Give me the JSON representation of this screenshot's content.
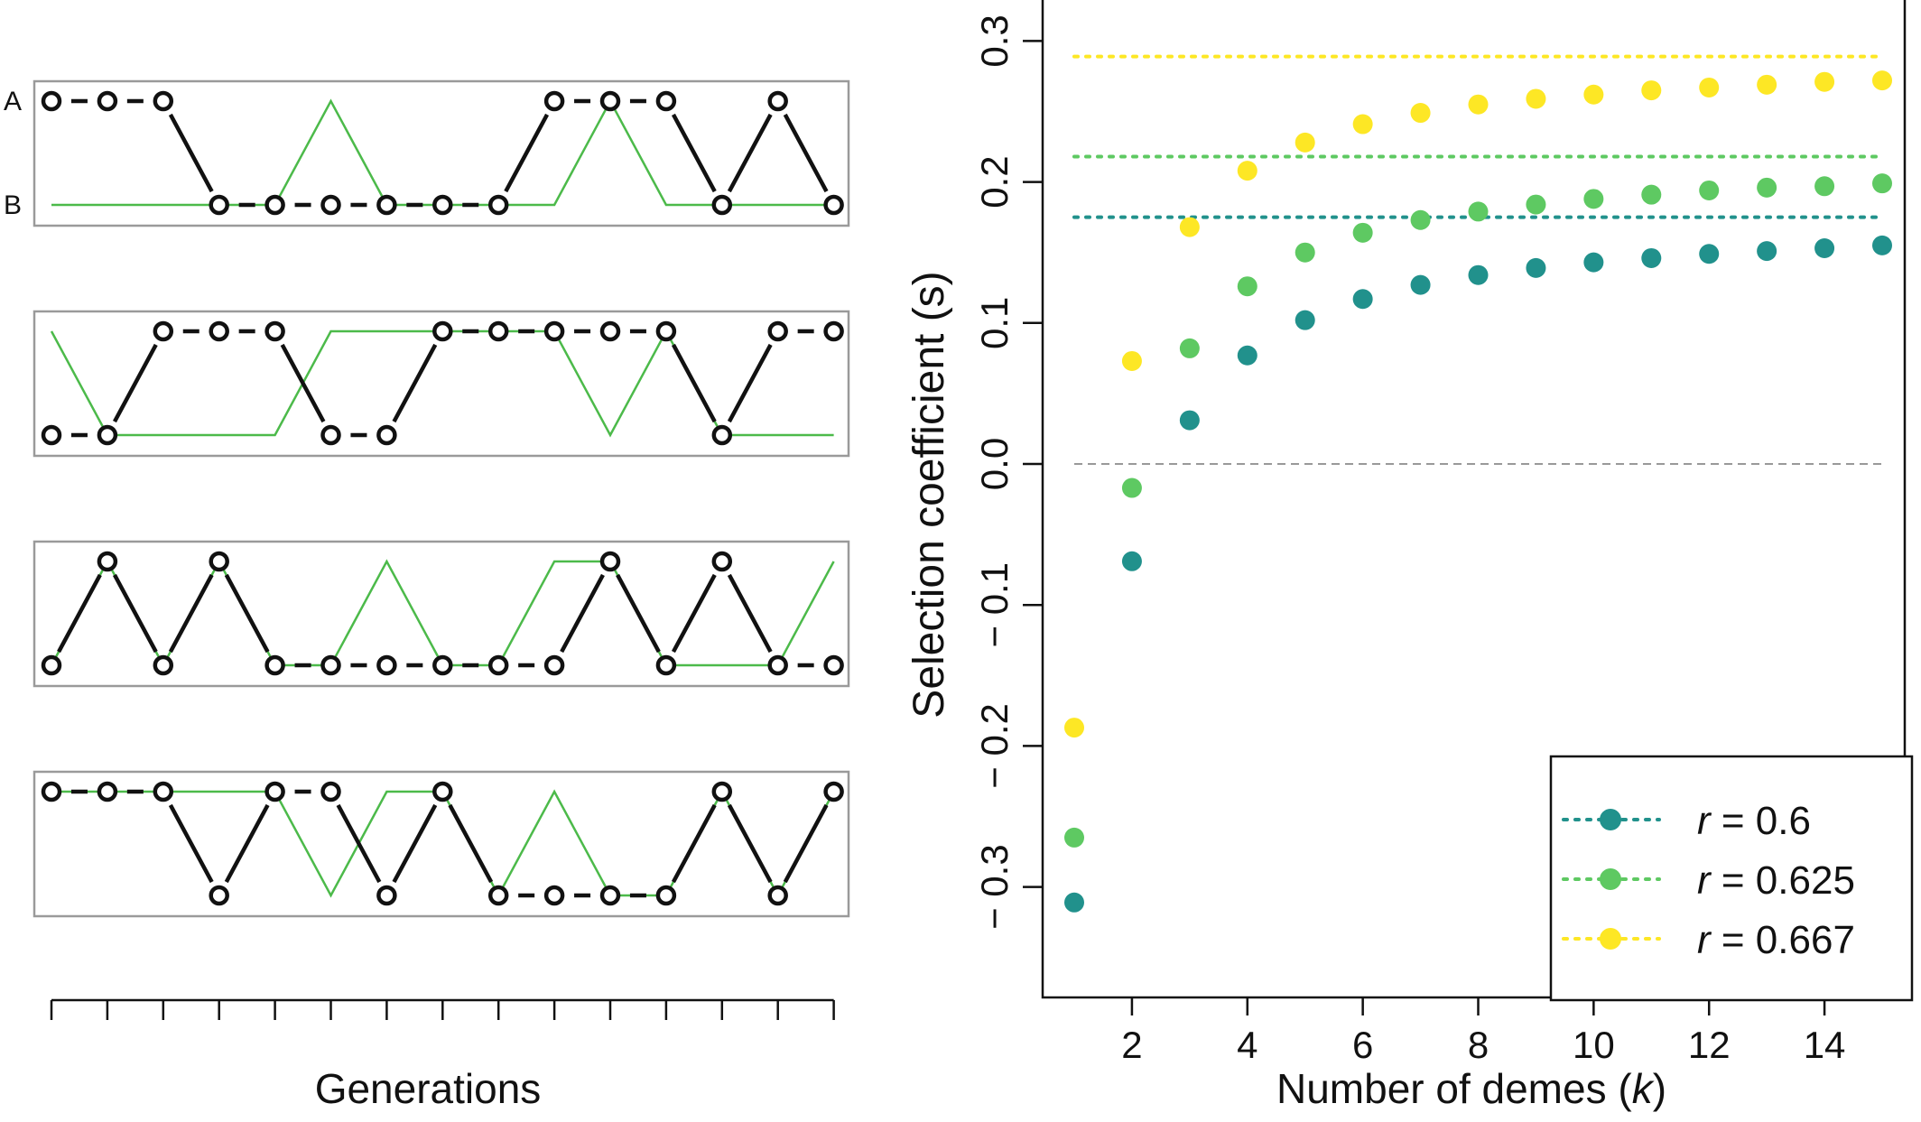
{
  "chart_data": [
    {
      "type": "line",
      "panel": "left",
      "xlabel": "Generations",
      "state_labels": [
        "A",
        "B"
      ],
      "generations": 15,
      "tracks": [
        {
          "name": "",
          "black": [
            "A",
            "A",
            "A",
            "B",
            "B",
            "B",
            "B",
            "B",
            "B",
            "A",
            "A",
            "A",
            "B",
            "A",
            "B"
          ],
          "green": [
            "B",
            "B",
            "B",
            "B",
            "B",
            "A",
            "B",
            "B",
            "B",
            "B",
            "A",
            "B",
            "B",
            "B",
            "B"
          ]
        },
        {
          "name": "",
          "black": [
            "B",
            "B",
            "A",
            "A",
            "A",
            "B",
            "B",
            "A",
            "A",
            "A",
            "A",
            "A",
            "B",
            "A",
            "A"
          ],
          "green": [
            "A",
            "B",
            "B",
            "B",
            "B",
            "A",
            "A",
            "A",
            "A",
            "A",
            "B",
            "A",
            "B",
            "B",
            "B"
          ]
        },
        {
          "name": "",
          "black": [
            "B",
            "A",
            "B",
            "A",
            "B",
            "B",
            "B",
            "B",
            "B",
            "B",
            "A",
            "B",
            "A",
            "B",
            "B"
          ],
          "green": [
            "B",
            "A",
            "B",
            "A",
            "B",
            "B",
            "A",
            "B",
            "B",
            "A",
            "A",
            "B",
            "B",
            "B",
            "A"
          ]
        },
        {
          "name": "",
          "black": [
            "A",
            "A",
            "A",
            "B",
            "A",
            "A",
            "B",
            "A",
            "B",
            "B",
            "B",
            "B",
            "A",
            "B",
            "A"
          ],
          "green": [
            "A",
            "A",
            "A",
            "A",
            "A",
            "B",
            "A",
            "A",
            "B",
            "A",
            "B",
            "B",
            "A",
            "B",
            "A"
          ]
        }
      ]
    },
    {
      "type": "scatter",
      "panel": "right",
      "xlabel_text": "Number of demes (",
      "xlabel_var": "k",
      "xlabel_end": ")",
      "ylabel": "Selection coefficient (s)",
      "xlim": [
        0.5,
        15.5
      ],
      "ylim": [
        -0.37,
        0.33
      ],
      "xticks": [
        "2",
        "4",
        "6",
        "8",
        "10",
        "12",
        "14"
      ],
      "yticks": [
        "− 0.3",
        "− 0.2",
        "− 0.1",
        "0.0",
        "0.1",
        "0.2",
        "0.3"
      ],
      "x": [
        1,
        2,
        3,
        4,
        5,
        6,
        7,
        8,
        9,
        10,
        11,
        12,
        13,
        14,
        15
      ],
      "zero_line": 0,
      "legend_position": "bottom-right",
      "series": [
        {
          "name_var": "r",
          "name_val": " = 0.6",
          "color": "#21918c",
          "asymptote": 0.175,
          "values": [
            -0.311,
            -0.069,
            0.031,
            0.077,
            0.102,
            0.117,
            0.127,
            0.134,
            0.139,
            0.143,
            0.146,
            0.149,
            0.151,
            0.153,
            0.155
          ]
        },
        {
          "name_var": "r",
          "name_val": " = 0.625",
          "color": "#5ec962",
          "asymptote": 0.218,
          "values": [
            -0.265,
            -0.017,
            0.082,
            0.126,
            0.15,
            0.164,
            0.173,
            0.179,
            0.184,
            0.188,
            0.191,
            0.194,
            0.196,
            0.197,
            0.199
          ]
        },
        {
          "name_var": "r",
          "name_val": " = 0.667",
          "color": "#fde725",
          "asymptote": 0.289,
          "values": [
            -0.187,
            0.073,
            0.168,
            0.208,
            0.228,
            0.241,
            0.249,
            0.255,
            0.259,
            0.262,
            0.265,
            0.267,
            0.269,
            0.271,
            0.272
          ]
        }
      ]
    }
  ]
}
